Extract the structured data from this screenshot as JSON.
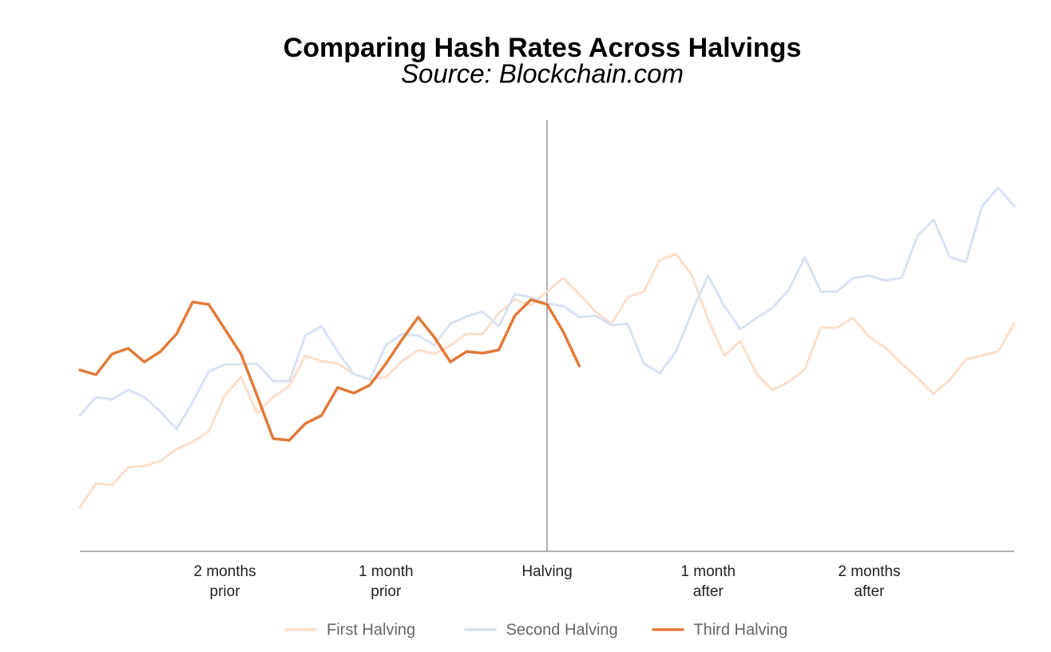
{
  "chart_data": {
    "type": "line",
    "title": "Comparing Hash Rates Across Halvings",
    "subtitle": "Source: Blockchain.com",
    "x": [
      -29,
      -28,
      -27,
      -26,
      -25,
      -24,
      -23,
      -22,
      -21,
      -20,
      -19,
      -18,
      -17,
      -16,
      -15,
      -14,
      -13,
      -12,
      -11,
      -10,
      -9,
      -8,
      -7,
      -6,
      -5,
      -4,
      -3,
      -2,
      -1,
      0,
      1,
      2,
      3,
      4,
      5,
      6,
      7,
      8,
      9,
      10,
      11,
      12,
      13,
      14,
      15,
      16,
      17,
      18,
      19,
      20,
      21,
      22,
      23,
      24,
      25,
      26,
      27,
      28,
      29
    ],
    "xlim": [
      -29,
      29
    ],
    "xticks": [
      {
        "value": -20,
        "label": "2 months prior"
      },
      {
        "value": -10,
        "label": "1 month prior"
      },
      {
        "value": 0,
        "label": "Halving"
      },
      {
        "value": 10,
        "label": "1 month after"
      },
      {
        "value": 20,
        "label": "2 months after"
      }
    ],
    "halving_line": 0,
    "ylim": [
      0,
      540
    ],
    "series": [
      {
        "name": "First Halving",
        "color": "#fbdfcb",
        "values": [
          55,
          85,
          83,
          105,
          107,
          113,
          128,
          137,
          150,
          195,
          218,
          173,
          193,
          207,
          245,
          238,
          235,
          222,
          215,
          218,
          238,
          252,
          247,
          258,
          272,
          272,
          298,
          315,
          308,
          325,
          342,
          322,
          300,
          285,
          318,
          325,
          365,
          372,
          345,
          290,
          245,
          263,
          222,
          202,
          212,
          228,
          280,
          280,
          292,
          268,
          255,
          235,
          217,
          197,
          215,
          240,
          245,
          250,
          285
        ]
      },
      {
        "name": "Second Halving",
        "color": "#d9e2f4",
        "values": [
          170,
          193,
          190,
          202,
          193,
          175,
          153,
          187,
          225,
          234,
          234,
          235,
          213,
          213,
          270,
          282,
          250,
          222,
          215,
          258,
          272,
          270,
          258,
          285,
          294,
          300,
          282,
          322,
          318,
          310,
          307,
          293,
          295,
          283,
          285,
          235,
          223,
          250,
          300,
          345,
          307,
          278,
          292,
          305,
          327,
          368,
          325,
          325,
          342,
          345,
          339,
          342,
          395,
          415,
          368,
          362,
          432,
          455,
          432
        ]
      },
      {
        "name": "Third Halving",
        "color": "#e07b39",
        "values": [
          227,
          221,
          247,
          254,
          237,
          250,
          272,
          312,
          309,
          278,
          247,
          195,
          141,
          139,
          160,
          170,
          205,
          198,
          208,
          235,
          265,
          293,
          268,
          237,
          250,
          248,
          252,
          295,
          315,
          309,
          275,
          232,
          null,
          null,
          null,
          null,
          null,
          null,
          null,
          null,
          null,
          null,
          null,
          null,
          null,
          null,
          null,
          null,
          null,
          null,
          null,
          null,
          null,
          null,
          null,
          null,
          null,
          null,
          null
        ]
      }
    ],
    "legend": "bottom"
  }
}
